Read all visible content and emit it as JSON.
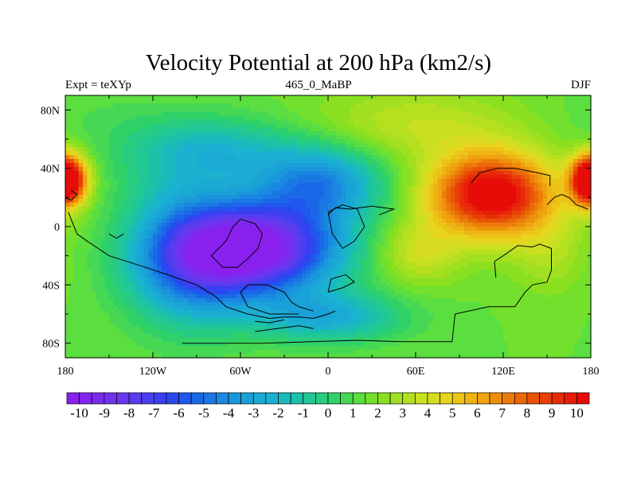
{
  "chart_data": {
    "type": "heatmap",
    "title": "Velocity Potential at 200 hPa (km2/s)",
    "left_label": "Expt = teXYp",
    "center_label": "465_0_MaBP",
    "right_label": "DJF",
    "x_ticks": [
      "180",
      "120W",
      "60W",
      "0",
      "60E",
      "120E",
      "180"
    ],
    "x_tick_values": [
      -180,
      -120,
      -60,
      0,
      60,
      120,
      180
    ],
    "y_ticks": [
      "80N",
      "40N",
      "0",
      "40S",
      "80S"
    ],
    "y_tick_values": [
      80,
      40,
      0,
      -40,
      -80
    ],
    "xlim": [
      -180,
      180
    ],
    "ylim": [
      -90,
      90
    ],
    "colorbar": {
      "labels": [
        "-10",
        "-9",
        "-8",
        "-7",
        "-6",
        "-5",
        "-4",
        "-3",
        "-2",
        "-1",
        "0",
        "1",
        "2",
        "3",
        "4",
        "5",
        "6",
        "7",
        "8",
        "9",
        "10"
      ],
      "label_values": [
        -10,
        -9,
        -8,
        -7,
        -6,
        -5,
        -4,
        -3,
        -2,
        -1,
        0,
        1,
        2,
        3,
        4,
        5,
        6,
        7,
        8,
        9,
        10
      ],
      "levels": [
        -10.5,
        -10,
        -9.5,
        -9,
        -8.5,
        -8,
        -7.5,
        -7,
        -6.5,
        -6,
        -5.5,
        -5,
        -4.5,
        -4,
        -3.5,
        -3,
        -2.5,
        -2,
        -1.5,
        -1,
        -0.5,
        0,
        0.5,
        1,
        1.5,
        2,
        2.5,
        3,
        3.5,
        4,
        4.5,
        5,
        5.5,
        6,
        6.5,
        7,
        7.5,
        8,
        8.5,
        9,
        9.5,
        10,
        10.5
      ],
      "colors": [
        "#8a20ee",
        "#8226ee",
        "#7a2cee",
        "#7232ee",
        "#6838ee",
        "#5a3cee",
        "#4a3ef0",
        "#3a40f0",
        "#2a48ee",
        "#1e58ec",
        "#1a68e8",
        "#1a78e4",
        "#1a88e0",
        "#1a96dc",
        "#1aa2d8",
        "#1aaad4",
        "#1ab2d0",
        "#1ababc",
        "#1cc2a8",
        "#22c894",
        "#28cc80",
        "#30d268",
        "#46d854",
        "#5ade40",
        "#72e02c",
        "#8ae020",
        "#a0e020",
        "#b4e020",
        "#c8e020",
        "#d8dc20",
        "#e8d41c",
        "#ecc418",
        "#eeb414",
        "#f0a210",
        "#ee900c",
        "#ec7c0a",
        "#ea6808",
        "#ea5408",
        "#e84008",
        "#e82c08",
        "#e81c08",
        "#e60c08"
      ]
    },
    "field_centers": [
      {
        "lon": -50,
        "lat": -15,
        "value": -10.5,
        "spread_lon": 40,
        "spread_lat": 22
      },
      {
        "lon": -95,
        "lat": -25,
        "value": -4,
        "spread_lon": 30,
        "spread_lat": 30
      },
      {
        "lon": -5,
        "lat": 30,
        "value": -4,
        "spread_lon": 30,
        "spread_lat": 18
      },
      {
        "lon": 0,
        "lat": -62,
        "value": -2.5,
        "spread_lon": 35,
        "spread_lat": 12
      },
      {
        "lon": -80,
        "lat": 52,
        "value": -2,
        "spread_lon": 40,
        "spread_lat": 16
      },
      {
        "lon": 112,
        "lat": 22,
        "value": 11.5,
        "spread_lon": 30,
        "spread_lat": 20
      },
      {
        "lon": 152,
        "lat": -18,
        "value": 3,
        "spread_lon": 18,
        "spread_lat": 20
      },
      {
        "lon": 62,
        "lat": -18,
        "value": 4,
        "spread_lon": 20,
        "spread_lat": 15
      },
      {
        "lon": -178,
        "lat": 32,
        "value": 9.5,
        "spread_lon": 10,
        "spread_lat": 12
      },
      {
        "lon": 178,
        "lat": 32,
        "value": 7,
        "spread_lon": 8,
        "spread_lat": 12
      },
      {
        "lon": 60,
        "lat": 70,
        "value": 3.5,
        "spread_lon": 50,
        "spread_lat": 18
      },
      {
        "lon": -150,
        "lat": 72,
        "value": 1,
        "spread_lon": 40,
        "spread_lat": 16
      },
      {
        "lon": -110,
        "lat": 25,
        "value": 0.5,
        "spread_lon": 25,
        "spread_lat": 15
      }
    ],
    "field_base": 1.5,
    "coastlines": [
      [
        [
          -100,
          -80
        ],
        [
          -45,
          -80
        ],
        [
          20,
          -78
        ],
        [
          50,
          -79
        ],
        [
          85,
          -79
        ],
        [
          87,
          -60
        ],
        [
          110,
          -55
        ],
        [
          128,
          -55
        ],
        [
          135,
          -45
        ],
        [
          140,
          -40
        ],
        [
          150,
          -38
        ],
        [
          153,
          -30
        ],
        [
          153,
          -15
        ],
        [
          145,
          -12
        ],
        [
          140,
          -14
        ],
        [
          130,
          -13
        ],
        [
          120,
          -20
        ],
        [
          114,
          -24
        ],
        [
          115,
          -35
        ]
      ],
      [
        [
          -178,
          10
        ],
        [
          -172,
          -5
        ],
        [
          -165,
          -10
        ],
        [
          -150,
          -20
        ],
        [
          -125,
          -28
        ],
        [
          -110,
          -33
        ],
        [
          -90,
          -40
        ],
        [
          -77,
          -48
        ],
        [
          -70,
          -55
        ],
        [
          -55,
          -60
        ],
        [
          -40,
          -63
        ],
        [
          -30,
          -62
        ],
        [
          -20,
          -62
        ],
        [
          -10,
          -63
        ],
        [
          0,
          -60
        ],
        [
          5,
          -58
        ]
      ],
      [
        [
          -10,
          -58
        ],
        [
          -20,
          -55
        ],
        [
          -25,
          -52
        ],
        [
          -30,
          -45
        ],
        [
          -42,
          -40
        ],
        [
          -55,
          -40
        ],
        [
          -60,
          -45
        ],
        [
          -55,
          -55
        ],
        [
          -40,
          -60
        ],
        [
          -20,
          -60
        ]
      ],
      [
        [
          -60,
          5
        ],
        [
          -50,
          2
        ],
        [
          -45,
          -5
        ],
        [
          -48,
          -15
        ],
        [
          -55,
          -22
        ],
        [
          -62,
          -28
        ],
        [
          -72,
          -28
        ],
        [
          -80,
          -20
        ],
        [
          -70,
          -10
        ],
        [
          -65,
          0
        ],
        [
          -60,
          5
        ]
      ],
      [
        [
          0,
          10
        ],
        [
          10,
          15
        ],
        [
          20,
          12
        ],
        [
          25,
          0
        ],
        [
          18,
          -10
        ],
        [
          10,
          -15
        ],
        [
          3,
          -5
        ],
        [
          0,
          10
        ]
      ],
      [
        [
          0,
          -45
        ],
        [
          10,
          -42
        ],
        [
          18,
          -38
        ],
        [
          12,
          -33
        ],
        [
          2,
          -36
        ],
        [
          0,
          -45
        ]
      ],
      [
        [
          0,
          8
        ],
        [
          5,
          13
        ],
        [
          15,
          12
        ],
        [
          30,
          14
        ],
        [
          45,
          12
        ],
        [
          35,
          8
        ]
      ],
      [
        [
          98,
          30
        ],
        [
          104,
          37
        ],
        [
          116,
          40
        ],
        [
          128,
          40
        ],
        [
          138,
          38
        ],
        [
          152,
          35
        ],
        [
          152,
          28
        ]
      ],
      [
        [
          150,
          15
        ],
        [
          155,
          20
        ],
        [
          160,
          22
        ],
        [
          165,
          20
        ],
        [
          170,
          15
        ],
        [
          178,
          12
        ]
      ],
      [
        [
          -180,
          20
        ],
        [
          -176,
          18
        ],
        [
          -172,
          22
        ],
        [
          -176,
          25
        ]
      ],
      [
        [
          -150,
          -5
        ],
        [
          -145,
          -8
        ],
        [
          -140,
          -5
        ]
      ],
      [
        [
          -10,
          -70
        ],
        [
          -20,
          -68
        ],
        [
          -35,
          -70
        ],
        [
          -50,
          -72
        ]
      ],
      [
        [
          -50,
          -65
        ],
        [
          -40,
          -66
        ],
        [
          -30,
          -64
        ]
      ]
    ]
  }
}
